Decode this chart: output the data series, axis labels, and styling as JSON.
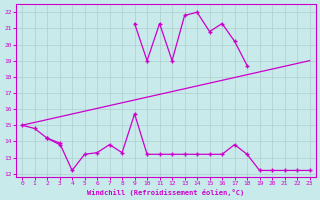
{
  "xlabel": "Windchill (Refroidissement éolien,°C)",
  "ylabel": "",
  "xlim": [
    -0.5,
    23.5
  ],
  "ylim": [
    11.8,
    22.5
  ],
  "yticks": [
    12,
    13,
    14,
    15,
    16,
    17,
    18,
    19,
    20,
    21,
    22
  ],
  "xticks": [
    0,
    1,
    2,
    3,
    4,
    5,
    6,
    7,
    8,
    9,
    10,
    11,
    12,
    13,
    14,
    15,
    16,
    17,
    18,
    19,
    20,
    21,
    22,
    23
  ],
  "bg_color": "#c8eaea",
  "line_color": "#cc00cc",
  "grid_color": "#b0d0d0",
  "series1_x": [
    0,
    1,
    2,
    3,
    4,
    5,
    6,
    7,
    8,
    9,
    10,
    11,
    12,
    13,
    14,
    15,
    16,
    17,
    18,
    19,
    20,
    21,
    22,
    23
  ],
  "series1_y": [
    15.0,
    14.8,
    14.2,
    13.9,
    12.2,
    13.2,
    13.3,
    13.8,
    13.3,
    15.7,
    13.2,
    13.2,
    13.2,
    13.2,
    13.2,
    13.2,
    13.2,
    13.8,
    13.2,
    12.2,
    12.2,
    12.2,
    12.2,
    12.2
  ],
  "series2_x": [
    9,
    10,
    11,
    12,
    13,
    14,
    15,
    16,
    17,
    18
  ],
  "series2_y": [
    21.3,
    19.0,
    21.3,
    19.0,
    21.8,
    22.0,
    20.8,
    21.3,
    20.2,
    18.7
  ],
  "series3_x": [
    0,
    23
  ],
  "series3_y": [
    15.0,
    19.0
  ],
  "series4_x": [
    0,
    1,
    2,
    3,
    4,
    5,
    6,
    7,
    8,
    9,
    10,
    11,
    12,
    13,
    14,
    15,
    16,
    17,
    18,
    19,
    20,
    21,
    22,
    23
  ],
  "series4_y": [
    15.0,
    null,
    14.2,
    13.8,
    null,
    14.0,
    null,
    null,
    null,
    16.2,
    null,
    null,
    null,
    null,
    null,
    null,
    null,
    null,
    null,
    null,
    null,
    null,
    null,
    null
  ]
}
